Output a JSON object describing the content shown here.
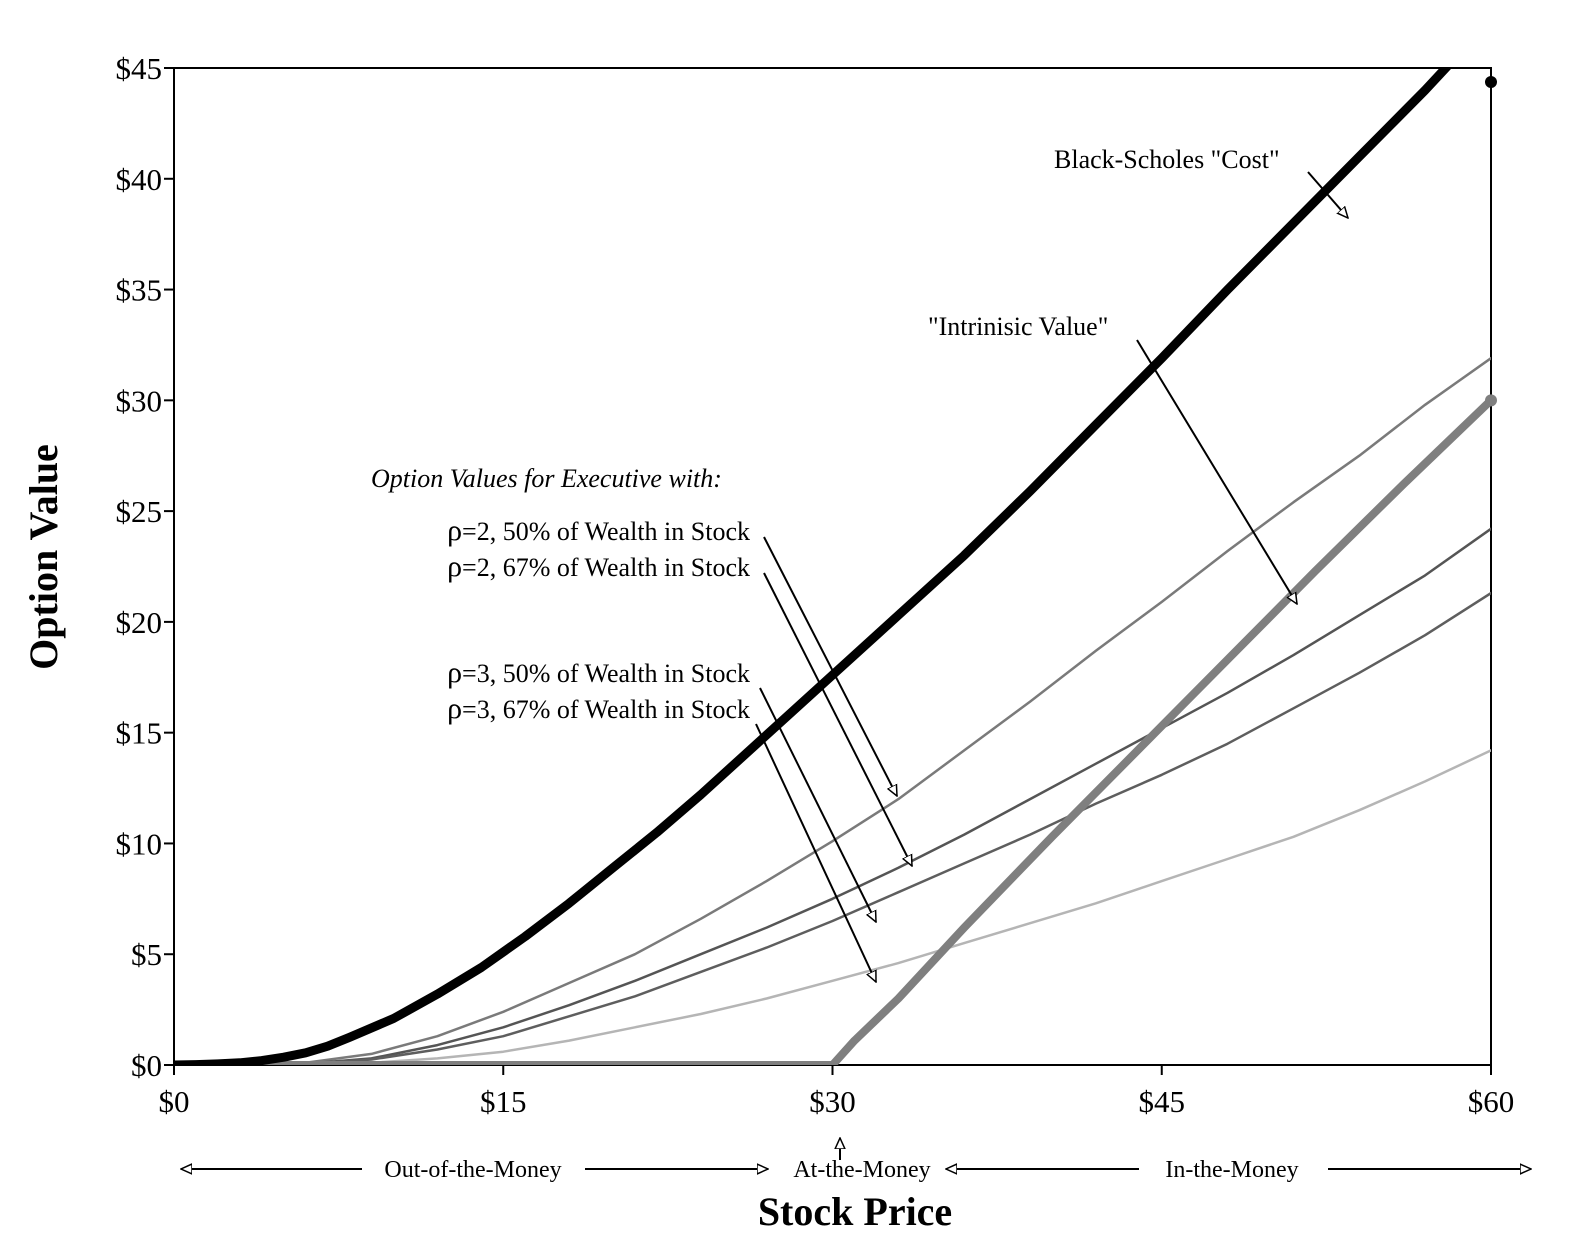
{
  "chart_data": {
    "type": "line",
    "title": "",
    "xlabel": "Stock Price",
    "ylabel": "Option Value",
    "xlim": [
      0,
      60
    ],
    "ylim": [
      0,
      45
    ],
    "x_ticks": [
      {
        "value": 0,
        "label": "$0"
      },
      {
        "value": 15,
        "label": "$15"
      },
      {
        "value": 30,
        "label": "$30"
      },
      {
        "value": 45,
        "label": "$45"
      },
      {
        "value": 60,
        "label": "$60"
      }
    ],
    "y_ticks": [
      {
        "value": 0,
        "label": "$0"
      },
      {
        "value": 5,
        "label": "$5"
      },
      {
        "value": 10,
        "label": "$10"
      },
      {
        "value": 15,
        "label": "$15"
      },
      {
        "value": 20,
        "label": "$20"
      },
      {
        "value": 25,
        "label": "$25"
      },
      {
        "value": 30,
        "label": "$30"
      },
      {
        "value": 35,
        "label": "$35"
      },
      {
        "value": 40,
        "label": "$40"
      },
      {
        "value": 45,
        "label": "$45"
      }
    ],
    "series": [
      {
        "name": "Black-Scholes \"Cost\"",
        "color": "#000000",
        "width": 9,
        "x": [
          0,
          1,
          2,
          3,
          4,
          5,
          6,
          7,
          8,
          10,
          12,
          14,
          16,
          18,
          20,
          22,
          24,
          26,
          28,
          30,
          33,
          36,
          39,
          42,
          45,
          48,
          51,
          54,
          57,
          60
        ],
        "y": [
          0,
          0.02,
          0.05,
          0.1,
          0.2,
          0.35,
          0.55,
          0.85,
          1.25,
          2.1,
          3.2,
          4.4,
          5.8,
          7.3,
          8.9,
          10.5,
          12.2,
          14.0,
          15.8,
          17.6,
          20.3,
          23.0,
          25.9,
          28.9,
          31.9,
          35.0,
          38.0,
          41.0,
          44.0,
          47.2
        ]
      },
      {
        "name": "\"Intrinisic Value\"",
        "color": "#7f7f7f",
        "width": 8,
        "x": [
          0,
          30,
          31,
          33,
          36,
          40,
          44,
          48,
          52,
          56,
          60
        ],
        "y": [
          0,
          0,
          1.1,
          3.0,
          6.2,
          10.3,
          14.3,
          18.3,
          22.3,
          26.2,
          30.0
        ]
      },
      {
        "name": "ρ=2, 50% of Wealth in Stock",
        "color": "#7a7a7a",
        "width": 2.5,
        "x": [
          0,
          3,
          6,
          9,
          12,
          15,
          18,
          21,
          24,
          27,
          30,
          33,
          36,
          39,
          42,
          45,
          48,
          51,
          54,
          57,
          60
        ],
        "y": [
          0,
          0.02,
          0.1,
          0.5,
          1.3,
          2.4,
          3.7,
          5.0,
          6.6,
          8.3,
          10.1,
          12.0,
          14.2,
          16.4,
          18.7,
          20.9,
          23.2,
          25.4,
          27.5,
          29.8,
          31.9
        ]
      },
      {
        "name": "ρ=2, 67% of Wealth in Stock",
        "color": "#555555",
        "width": 2.5,
        "x": [
          0,
          3,
          6,
          9,
          12,
          15,
          18,
          21,
          24,
          27,
          30,
          33,
          36,
          39,
          42,
          45,
          48,
          51,
          54,
          57,
          60
        ],
        "y": [
          0,
          0.01,
          0.06,
          0.3,
          0.9,
          1.7,
          2.7,
          3.8,
          5.0,
          6.2,
          7.5,
          8.9,
          10.4,
          12.0,
          13.6,
          15.2,
          16.8,
          18.5,
          20.3,
          22.1,
          24.2
        ]
      },
      {
        "name": "ρ=3, 50% of Wealth in Stock",
        "color": "#5e5e5e",
        "width": 2.5,
        "x": [
          0,
          3,
          6,
          9,
          12,
          15,
          18,
          21,
          24,
          27,
          30,
          33,
          36,
          39,
          42,
          45,
          48,
          51,
          54,
          57,
          60
        ],
        "y": [
          0,
          0.01,
          0.05,
          0.25,
          0.7,
          1.3,
          2.2,
          3.1,
          4.2,
          5.3,
          6.5,
          7.8,
          9.1,
          10.4,
          11.8,
          13.1,
          14.5,
          16.1,
          17.7,
          19.4,
          21.3
        ]
      },
      {
        "name": "ρ=3, 67% of Wealth in Stock",
        "color": "#b5b5b5",
        "width": 2.5,
        "x": [
          0,
          3,
          6,
          9,
          12,
          15,
          18,
          21,
          24,
          27,
          30,
          33,
          36,
          39,
          42,
          45,
          48,
          51,
          54,
          57,
          60
        ],
        "y": [
          0,
          0.0,
          0.02,
          0.1,
          0.3,
          0.6,
          1.1,
          1.7,
          2.3,
          3.0,
          3.8,
          4.6,
          5.5,
          6.4,
          7.3,
          8.3,
          9.3,
          10.3,
          11.5,
          12.8,
          14.2
        ]
      }
    ],
    "annotations": {
      "bs_label": "Black-Scholes \"Cost\"",
      "intrinsic_label": "\"Intrinisic Value\"",
      "exec_heading": "Option Values for Executive with:",
      "rho_symbol": "ρ",
      "rho2_50": "=2, 50% of Wealth in Stock",
      "rho2_67": "=2, 67% of Wealth in Stock",
      "rho3_50": "=3, 50% of Wealth in Stock",
      "rho3_67": "=3, 67% of Wealth in Stock"
    },
    "regions": {
      "otm": "Out-of-the-Money",
      "atm": "At-the-Money",
      "itm": "In-the-Money"
    }
  }
}
